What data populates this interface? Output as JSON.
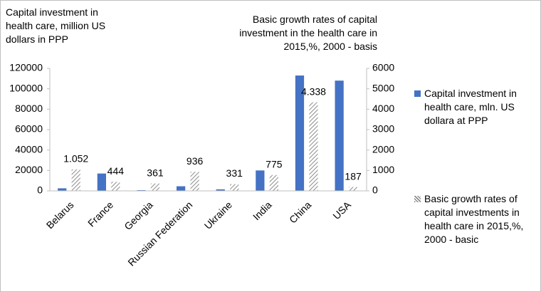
{
  "chart_data": {
    "type": "bar",
    "y_label": "Capital investment in health care, million US dollars in PPP",
    "y2_label": "Basic growth rates of capital investment in the health care in 2015,%, 2000 - basis",
    "categories": [
      "Belarus",
      "France",
      "Georgia",
      "Russian Federation",
      "Ukraine",
      "India",
      "China",
      "USA"
    ],
    "series": [
      {
        "name": "Capital investment in health care, mln. US dollara at PPP",
        "color": "#4472c4",
        "pattern": "solid",
        "values": [
          2500,
          17000,
          700,
          4500,
          1500,
          20000,
          113000,
          108000
        ]
      },
      {
        "name": "Basic growth rates of capital investments in health care in 2015,%, 2000 - basic",
        "color": "#8c8c8c",
        "pattern": "hatch",
        "axis": "y2",
        "values": [
          1052,
          444,
          361,
          936,
          331,
          775,
          4338,
          187
        ],
        "value_labels": [
          "1.052",
          "444",
          "361",
          "936",
          "331",
          "775",
          "4.338",
          "187"
        ]
      }
    ],
    "ylim": [
      0,
      120000
    ],
    "yticks": [
      0,
      20000,
      40000,
      60000,
      80000,
      100000,
      120000
    ],
    "y2lim": [
      0,
      6000
    ],
    "y2ticks": [
      0,
      1000,
      2000,
      3000,
      4000,
      5000,
      6000
    ],
    "legend": "right"
  }
}
